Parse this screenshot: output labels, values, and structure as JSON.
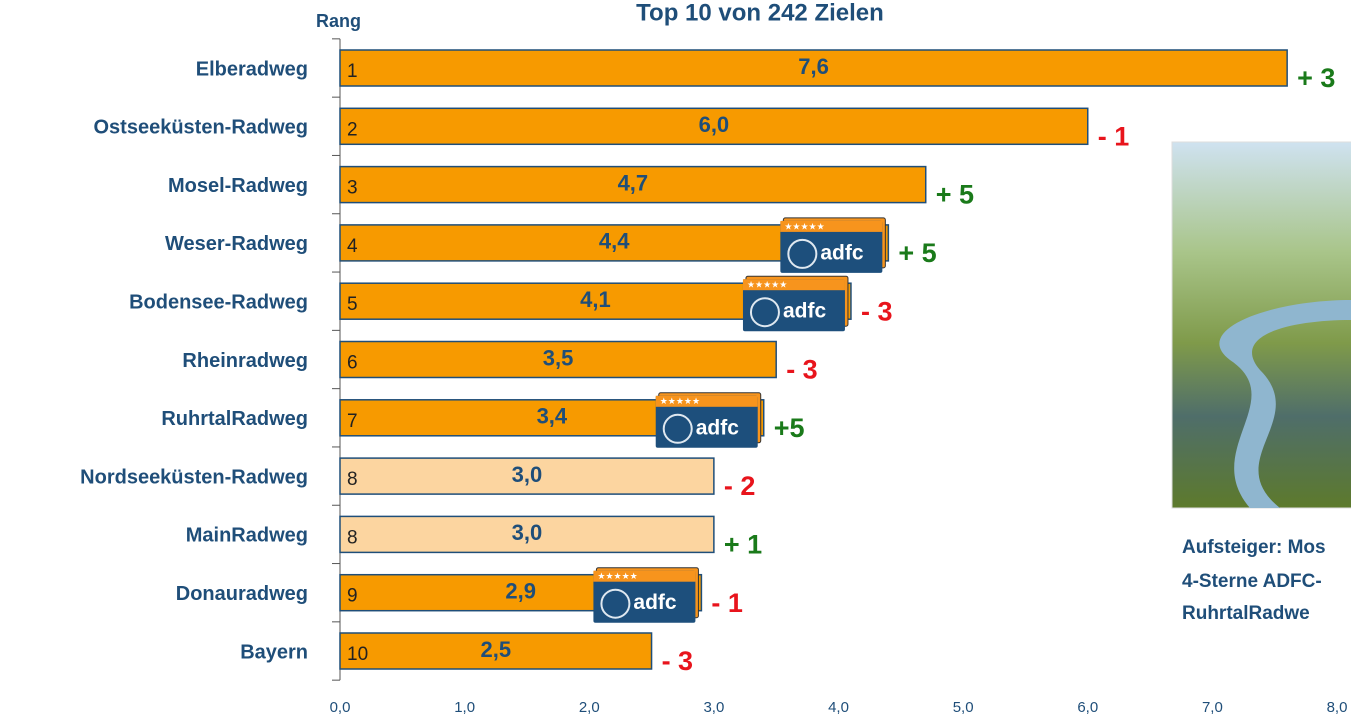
{
  "chart_data": {
    "type": "barh",
    "title": "Top 10 von 242 Zielen",
    "category_axis_label": "Rang",
    "categories": [
      "Elberadweg",
      "Ostseeküsten-Radweg",
      "Mosel-Radweg",
      "Weser-Radweg",
      "Bodensee-Radweg",
      "Rheinradweg",
      "RuhrtalRadweg",
      "Nordseeküsten-Radweg",
      "MainRadweg",
      "Donauradweg",
      "Bayern"
    ],
    "ranks": [
      "1",
      "2",
      "3",
      "4",
      "5",
      "6",
      "7",
      "8",
      "8",
      "9",
      "10"
    ],
    "values": [
      7.6,
      6.0,
      4.7,
      4.4,
      4.1,
      3.5,
      3.4,
      3.0,
      3.0,
      2.9,
      2.5
    ],
    "value_labels": [
      "7,6",
      "6,0",
      "4,7",
      "4,4",
      "4,1",
      "3,5",
      "3,4",
      "3,0",
      "3,0",
      "2,9",
      "2,5"
    ],
    "colors": [
      "#f79a00",
      "#f79a00",
      "#f79a00",
      "#f79a00",
      "#f79a00",
      "#f79a00",
      "#f79a00",
      "#fcd5a0",
      "#fcd5a0",
      "#f79a00",
      "#f79a00"
    ],
    "change_labels": [
      "+ 3",
      "- 1",
      "+ 5",
      "+ 5",
      "- 3",
      "- 3",
      "+5",
      "- 2",
      "+ 1",
      "- 1",
      "- 3"
    ],
    "change_colors": [
      "#1a7a1a",
      "#e8141c",
      "#1a7a1a",
      "#1a7a1a",
      "#e8141c",
      "#e8141c",
      "#1a7a1a",
      "#e8141c",
      "#1a7a1a",
      "#e8141c",
      "#e8141c"
    ],
    "certified": [
      false,
      false,
      false,
      true,
      true,
      false,
      true,
      false,
      false,
      true,
      false
    ],
    "badge_text": "adfc",
    "badge_stars": "★★★★★",
    "xlim": [
      0,
      8
    ],
    "xticks": [
      {
        "value": 0,
        "label": "0,0"
      },
      {
        "value": 1,
        "label": "1,0"
      },
      {
        "value": 2,
        "label": "2,0"
      },
      {
        "value": 3,
        "label": "3,0"
      },
      {
        "value": 4,
        "label": "4,0"
      },
      {
        "value": 5,
        "label": "5,0"
      },
      {
        "value": 6,
        "label": "6,0"
      },
      {
        "value": 7,
        "label": "7,0"
      },
      {
        "value": 8,
        "label": "8,0"
      }
    ],
    "caption": [
      "Aufsteiger: Mos",
      "4-Sterne ADFC-",
      "RuhrtalRadwe"
    ]
  }
}
